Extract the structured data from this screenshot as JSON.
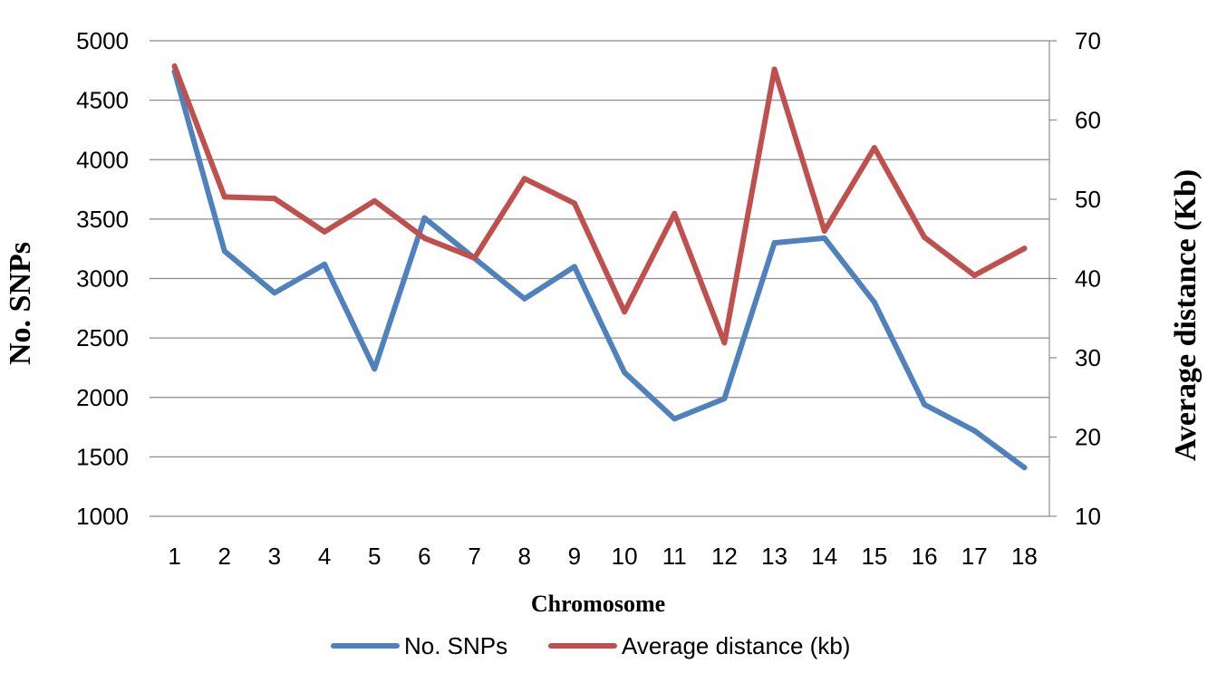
{
  "chart_data": {
    "type": "line",
    "categories": [
      "1",
      "2",
      "3",
      "4",
      "5",
      "6",
      "7",
      "8",
      "9",
      "10",
      "11",
      "12",
      "13",
      "14",
      "15",
      "16",
      "17",
      "18"
    ],
    "xlabel": "Chromosome",
    "ylabel": "No. SNPs",
    "y2label": "Average distance (Kb)",
    "ylim": [
      1000,
      5000
    ],
    "y2lim": [
      10,
      70
    ],
    "yticks": [
      "1000",
      "1500",
      "2000",
      "2500",
      "3000",
      "3500",
      "4000",
      "4500",
      "5000"
    ],
    "y2ticks": [
      "10",
      "20",
      "30",
      "40",
      "50",
      "60",
      "70"
    ],
    "grid": true,
    "legend_position": "bottom",
    "series": [
      {
        "name": "No. SNPs",
        "axis": "left",
        "color": "#4f81bd",
        "values": [
          4740,
          3230,
          2880,
          3120,
          2240,
          3510,
          3170,
          2830,
          3100,
          2210,
          1820,
          1990,
          3300,
          3340,
          2800,
          1940,
          1720,
          1410
        ]
      },
      {
        "name": "Average distance (kb)",
        "axis": "right",
        "color": "#c0504d",
        "values": [
          66.8,
          50.3,
          50.1,
          45.9,
          49.8,
          45.1,
          42.6,
          52.6,
          49.5,
          35.8,
          48.2,
          31.9,
          66.4,
          46.0,
          56.5,
          45.2,
          40.4,
          43.8
        ]
      }
    ]
  }
}
